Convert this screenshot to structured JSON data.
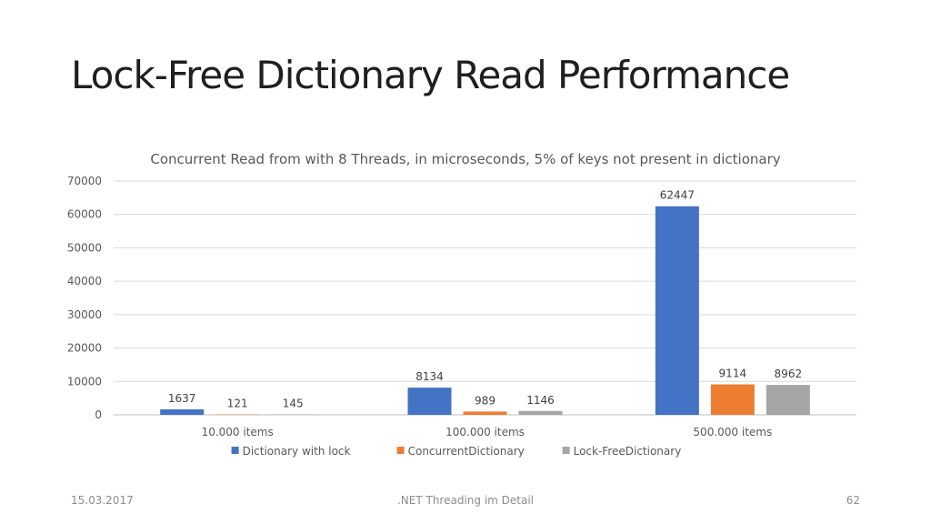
{
  "slide": {
    "title": "Lock-Free Dictionary Read Performance",
    "footer_date": "15.03.2017",
    "footer_center": ".NET Threading im Detail",
    "page_number": "62"
  },
  "chart_data": {
    "type": "bar",
    "title": "Concurrent Read from with 8 Threads, in microseconds, 5% of keys not present in dictionary",
    "xlabel": "",
    "ylabel": "",
    "categories": [
      "10.000 items",
      "100.000 items",
      "500.000 items"
    ],
    "series": [
      {
        "name": "Dictionary with lock",
        "color": "#4472C4",
        "values": [
          1637,
          8134,
          62447
        ]
      },
      {
        "name": "ConcurrentDictionary",
        "color": "#ED7D31",
        "values": [
          121,
          989,
          9114
        ]
      },
      {
        "name": "Lock-FreeDictionary",
        "color": "#A5A5A5",
        "values": [
          145,
          1146,
          8962
        ]
      }
    ],
    "ylim": [
      0,
      70000
    ],
    "yticks": [
      0,
      10000,
      20000,
      30000,
      40000,
      50000,
      60000,
      70000
    ],
    "grid": true,
    "legend": "bottom",
    "data_labels": true
  }
}
